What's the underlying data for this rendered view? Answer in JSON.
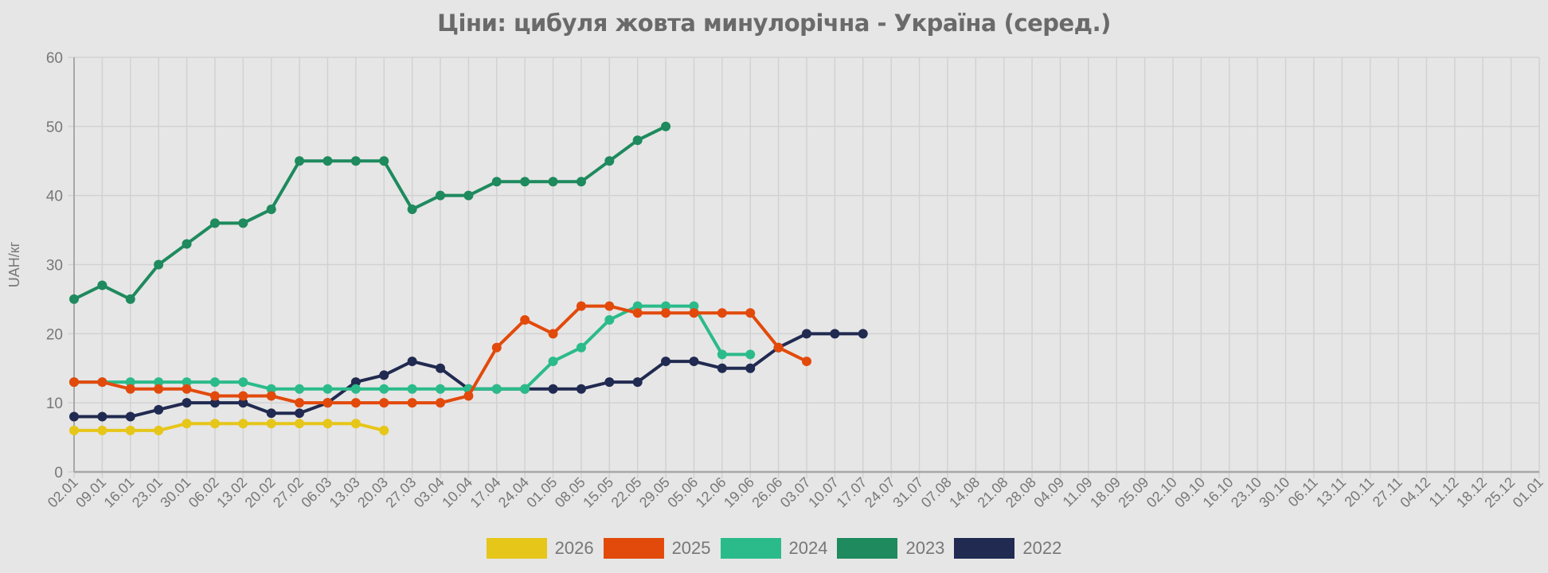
{
  "chart_data": {
    "type": "line",
    "title": "Ціни: цибуля жовта минулорічна - Україна (серед.)",
    "xlabel": "",
    "ylabel": "UAH/кг",
    "ylim": [
      0,
      60
    ],
    "yticks": [
      0,
      10,
      20,
      30,
      40,
      50,
      60
    ],
    "grid": true,
    "legend_position": "bottom",
    "categories": [
      "02.01",
      "09.01",
      "16.01",
      "23.01",
      "30.01",
      "06.02",
      "13.02",
      "20.02",
      "27.02",
      "06.03",
      "13.03",
      "20.03",
      "27.03",
      "03.04",
      "10.04",
      "17.04",
      "24.04",
      "01.05",
      "08.05",
      "15.05",
      "22.05",
      "29.05",
      "05.06",
      "12.06",
      "19.06",
      "26.06",
      "03.07",
      "10.07",
      "17.07",
      "24.07",
      "31.07",
      "07.08",
      "14.08",
      "21.08",
      "28.08",
      "04.09",
      "11.09",
      "18.09",
      "25.09",
      "02.10",
      "09.10",
      "16.10",
      "23.10",
      "30.10",
      "06.11",
      "13.11",
      "20.11",
      "27.11",
      "04.12",
      "11.12",
      "18.12",
      "25.12",
      "01.01"
    ],
    "series": [
      {
        "name": "2026",
        "color": "#e6c619",
        "values": [
          6,
          6,
          6,
          6,
          7,
          7,
          7,
          7,
          7,
          7,
          7,
          6
        ]
      },
      {
        "name": "2025",
        "color": "#e24a0c",
        "values": [
          13,
          13,
          12,
          12,
          12,
          11,
          11,
          11,
          10,
          10,
          10,
          10,
          10,
          10,
          11,
          18,
          22,
          20,
          24,
          24,
          23,
          23,
          23,
          23,
          23,
          18,
          16
        ]
      },
      {
        "name": "2024",
        "color": "#2bbb8a",
        "values": [
          13,
          13,
          13,
          13,
          13,
          13,
          13,
          12,
          12,
          12,
          12,
          12,
          12,
          12,
          12,
          12,
          12,
          16,
          18,
          22,
          24,
          24,
          24,
          17,
          17
        ]
      },
      {
        "name": "2023",
        "color": "#1e8a5e",
        "values": [
          25,
          27,
          25,
          30,
          33,
          36,
          36,
          38,
          45,
          45,
          45,
          45,
          38,
          40,
          40,
          42,
          42,
          42,
          42,
          45,
          48,
          50
        ]
      },
      {
        "name": "2022",
        "color": "#212a50",
        "values": [
          8,
          8,
          8,
          9,
          10,
          10,
          10,
          8.5,
          8.5,
          10,
          13,
          14,
          16,
          15,
          12,
          12,
          12,
          12,
          12,
          13,
          13,
          16,
          16,
          15,
          15,
          18,
          20,
          20,
          20
        ]
      }
    ]
  },
  "legend": [
    {
      "label": "2026",
      "color": "#e6c619"
    },
    {
      "label": "2025",
      "color": "#e24a0c"
    },
    {
      "label": "2024",
      "color": "#2bbb8a"
    },
    {
      "label": "2023",
      "color": "#1e8a5e"
    },
    {
      "label": "2022",
      "color": "#212a50"
    }
  ]
}
